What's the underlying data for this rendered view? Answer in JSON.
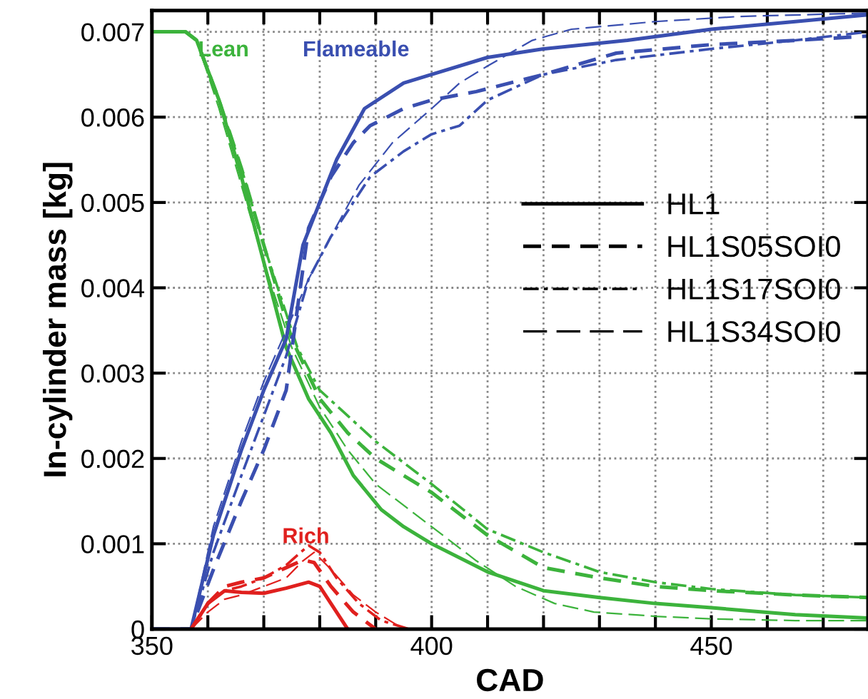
{
  "chart_data": {
    "type": "line",
    "xlabel": "CAD",
    "ylabel": "In-cylinder mass [kg]",
    "xlim": [
      350,
      478
    ],
    "ylim": [
      0,
      0.00725
    ],
    "xticks": [
      350,
      {
        "value": 360,
        "label": null
      },
      {
        "value": 370,
        "label": null
      },
      {
        "value": 380,
        "label": null
      },
      {
        "value": 390,
        "label": null
      },
      400,
      {
        "value": 410,
        "label": null
      },
      {
        "value": 420,
        "label": null
      },
      {
        "value": 430,
        "label": null
      },
      {
        "value": 440,
        "label": null
      },
      450,
      {
        "value": 460,
        "label": null
      },
      {
        "value": 470,
        "label": null
      }
    ],
    "yticks": [
      0,
      0.001,
      0.002,
      0.003,
      0.004,
      0.005,
      0.006,
      0.007
    ],
    "grid": true,
    "marker": "none",
    "annotations": [
      "Lean",
      "Flameable",
      "Rich",
      "HL1",
      "HL1S05SOI0",
      "HL1S17SOI0",
      "HL1S34SOI0"
    ],
    "series": [
      {
        "color": "#3cb33c",
        "line_style": "solid",
        "x": [
          350,
          356,
          358,
          362,
          366,
          370,
          374,
          378,
          382,
          386,
          391,
          395,
          400,
          410,
          420,
          430,
          440,
          450,
          465,
          478
        ],
        "values": [
          0.007,
          0.007,
          0.0069,
          0.0062,
          0.0053,
          0.0043,
          0.0033,
          0.0027,
          0.0023,
          0.0018,
          0.0014,
          0.0012,
          0.001,
          0.00067,
          0.00045,
          0.00037,
          0.0003,
          0.00025,
          0.00017,
          0.00013
        ]
      },
      {
        "color": "#3cb33c",
        "line_style": "dashed",
        "x": [
          350,
          356,
          358,
          362,
          366,
          370,
          375,
          380,
          385,
          390,
          400,
          410,
          420,
          430,
          440,
          450,
          465,
          478
        ],
        "values": [
          0.007,
          0.007,
          0.0069,
          0.0062,
          0.0054,
          0.0045,
          0.0034,
          0.0027,
          0.0023,
          0.002,
          0.0016,
          0.0011,
          0.00072,
          0.0006,
          0.0005,
          0.00045,
          0.0004,
          0.00037
        ]
      },
      {
        "color": "#3cb33c",
        "line_style": "dashdot",
        "x": [
          350,
          356,
          358,
          362,
          366,
          370,
          376,
          380,
          385,
          390,
          400,
          410,
          420,
          430,
          440,
          450,
          465,
          478
        ],
        "values": [
          0.007,
          0.007,
          0.0069,
          0.0062,
          0.0054,
          0.0045,
          0.0033,
          0.0028,
          0.0025,
          0.0022,
          0.0017,
          0.00117,
          0.0009,
          0.00067,
          0.00055,
          0.00047,
          0.0004,
          0.00037
        ]
      },
      {
        "color": "#3cb33c",
        "line_style": "longdash",
        "x": [
          350,
          356,
          358,
          362,
          366,
          370,
          375,
          380,
          385,
          390,
          400,
          408,
          415,
          422,
          429,
          440,
          450,
          465,
          478
        ],
        "values": [
          0.007,
          0.007,
          0.0069,
          0.0061,
          0.0052,
          0.0043,
          0.0033,
          0.0026,
          0.0021,
          0.0017,
          0.0012,
          0.0008,
          0.0005,
          0.0003,
          0.0002,
          0.00015,
          0.00012,
          0.0001,
          0.0001
        ]
      },
      {
        "color": "#3a4fb0",
        "line_style": "solid",
        "x": [
          350,
          357,
          361,
          366,
          370,
          374,
          377,
          380,
          383,
          388,
          395,
          400,
          410,
          420,
          435,
          450,
          465,
          478
        ],
        "values": [
          0,
          0,
          0.0011,
          0.0021,
          0.0028,
          0.0034,
          0.0045,
          0.005,
          0.0055,
          0.0061,
          0.0064,
          0.0065,
          0.0067,
          0.0068,
          0.0069,
          0.00703,
          0.00712,
          0.0072
        ]
      },
      {
        "color": "#3a4fb0",
        "line_style": "dashed",
        "x": [
          350,
          357,
          361,
          366,
          370,
          374,
          378,
          382,
          386,
          389,
          395,
          400,
          408,
          420,
          433,
          450,
          465,
          478
        ],
        "values": [
          0,
          0,
          0.0007,
          0.0015,
          0.0021,
          0.0028,
          0.0047,
          0.0053,
          0.0057,
          0.0059,
          0.0061,
          0.0062,
          0.0063,
          0.0065,
          0.00675,
          0.00685,
          0.0069,
          0.00695
        ]
      },
      {
        "color": "#3a4fb0",
        "line_style": "dashdot",
        "x": [
          350,
          357,
          361,
          366,
          370,
          374,
          378,
          382,
          386,
          389,
          395,
          400,
          405,
          410,
          420,
          433,
          450,
          465,
          478
        ],
        "values": [
          0,
          0,
          0.0009,
          0.0018,
          0.0025,
          0.0032,
          0.0041,
          0.0046,
          0.005,
          0.0053,
          0.0056,
          0.0058,
          0.0059,
          0.0062,
          0.0065,
          0.00667,
          0.0068,
          0.0069,
          0.007
        ]
      },
      {
        "color": "#3a4fb0",
        "line_style": "longdash",
        "x": [
          350,
          357,
          361,
          366,
          370,
          374,
          378,
          382,
          387,
          393,
          400,
          405,
          410,
          418,
          425,
          440,
          455,
          478
        ],
        "values": [
          0,
          0,
          0.0012,
          0.0022,
          0.0029,
          0.0035,
          0.0041,
          0.0046,
          0.0052,
          0.0057,
          0.0061,
          0.0064,
          0.0066,
          0.0069,
          0.00703,
          0.00712,
          0.00718,
          0.00722
        ]
      },
      {
        "color": "#e0201e",
        "line_style": "solid",
        "x": [
          357,
          360,
          363,
          366,
          370,
          374,
          378,
          380,
          382,
          385
        ],
        "values": [
          0,
          0.0003,
          0.00045,
          0.00043,
          0.00042,
          0.00048,
          0.00055,
          0.0005,
          0.0003,
          0
        ]
      },
      {
        "color": "#e0201e",
        "line_style": "dashed",
        "x": [
          357,
          360,
          363,
          366,
          370,
          374,
          377,
          379,
          382,
          386,
          390
        ],
        "values": [
          0,
          0.0003,
          0.0005,
          0.00055,
          0.0006,
          0.00072,
          0.00081,
          0.00078,
          0.0005,
          0.0002,
          0
        ]
      },
      {
        "color": "#e0201e",
        "line_style": "dashdot",
        "x": [
          357,
          360,
          363,
          366,
          370,
          374,
          378,
          380,
          383,
          387,
          391,
          396
        ],
        "values": [
          0,
          0.0003,
          0.00045,
          0.0005,
          0.0006,
          0.00075,
          0.00098,
          0.0009,
          0.0006,
          0.0003,
          0.0001,
          0
        ]
      },
      {
        "color": "#e0201e",
        "line_style": "longdash",
        "x": [
          357,
          360,
          363,
          366,
          370,
          374,
          377,
          379,
          382,
          386,
          390,
          395
        ],
        "values": [
          0,
          0.0002,
          0.00035,
          0.0004,
          0.0005,
          0.0006,
          0.0008,
          0.0009,
          0.0007,
          0.0004,
          0.0002,
          0
        ]
      }
    ]
  }
}
